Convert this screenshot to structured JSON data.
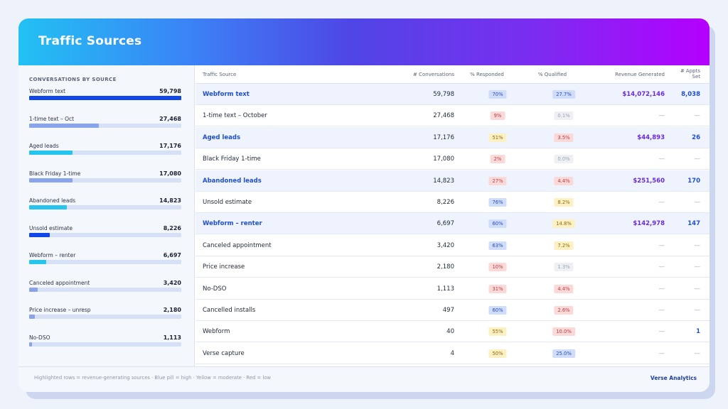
{
  "header": {
    "title": "Traffic Sources"
  },
  "colors": {
    "bar_dark": "#1146e8",
    "bar_cyan": "#27c4ee",
    "bar_light": "#8aa4ec",
    "pill_blue_bg": "#cfdcfb",
    "pill_blue_fg": "#2a4fb5",
    "pill_yellow_bg": "#fdf0c2",
    "pill_yellow_fg": "#8a6a10",
    "pill_red_bg": "#fbd9d9",
    "pill_red_fg": "#b84040",
    "pill_gray_bg": "#eef0f4",
    "pill_gray_fg": "#9aa1ae"
  },
  "left_panel": {
    "title": "CONVERSATIONS BY SOURCE",
    "max": 59798,
    "items": [
      {
        "label": "Webform text",
        "value": "59,798",
        "amount": 59798,
        "color": "dark"
      },
      {
        "label": "1-time text – Oct",
        "value": "27,468",
        "amount": 27468,
        "color": "light"
      },
      {
        "label": "Aged leads",
        "value": "17,176",
        "amount": 17176,
        "color": "cyan"
      },
      {
        "label": "Black Friday 1-time",
        "value": "17,080",
        "amount": 17080,
        "color": "light"
      },
      {
        "label": "Abandoned leads",
        "value": "14,823",
        "amount": 14823,
        "color": "cyan"
      },
      {
        "label": "Unsold estimate",
        "value": "8,226",
        "amount": 8226,
        "color": "dark"
      },
      {
        "label": "Webform – renter",
        "value": "6,697",
        "amount": 6697,
        "color": "cyan"
      },
      {
        "label": "Canceled appointment",
        "value": "3,420",
        "amount": 3420,
        "color": "light"
      },
      {
        "label": "Price increase – unresp",
        "value": "2,180",
        "amount": 2180,
        "color": "light"
      },
      {
        "label": "No-DSO",
        "value": "1,113",
        "amount": 1113,
        "color": "light"
      }
    ]
  },
  "table": {
    "columns": {
      "source": "Traffic Source",
      "conversations": "# Conversations",
      "responded": "% Responded",
      "qualified": "% Qualified",
      "revenue": "Revenue Generated",
      "appts_line1": "# Appts",
      "appts_line2": "Set"
    },
    "rows": [
      {
        "source": "Webform text",
        "conversations": "59,798",
        "responded": "70%",
        "responded_level": "blue",
        "qualified": "27.7%",
        "qualified_level": "blue",
        "revenue": "$14,072,146",
        "appts": "8,038",
        "highlight": true
      },
      {
        "source": "1-time text – October",
        "conversations": "27,468",
        "responded": "9%",
        "responded_level": "red",
        "qualified": "0.1%",
        "qualified_level": "gray",
        "revenue": "—",
        "appts": "—",
        "highlight": false
      },
      {
        "source": "Aged leads",
        "conversations": "17,176",
        "responded": "51%",
        "responded_level": "yellow",
        "qualified": "3.5%",
        "qualified_level": "red",
        "revenue": "$44,893",
        "appts": "26",
        "highlight": true
      },
      {
        "source": "Black Friday 1-time",
        "conversations": "17,080",
        "responded": "2%",
        "responded_level": "red",
        "qualified": "0.0%",
        "qualified_level": "gray",
        "revenue": "—",
        "appts": "—",
        "highlight": false
      },
      {
        "source": "Abandoned leads",
        "conversations": "14,823",
        "responded": "27%",
        "responded_level": "red",
        "qualified": "4.4%",
        "qualified_level": "red",
        "revenue": "$251,560",
        "appts": "170",
        "highlight": true
      },
      {
        "source": "Unsold estimate",
        "conversations": "8,226",
        "responded": "76%",
        "responded_level": "blue",
        "qualified": "8.2%",
        "qualified_level": "yellow",
        "revenue": "—",
        "appts": "—",
        "highlight": false
      },
      {
        "source": "Webform – renter",
        "conversations": "6,697",
        "responded": "60%",
        "responded_level": "blue",
        "qualified": "14.8%",
        "qualified_level": "yellow",
        "revenue": "$142,978",
        "appts": "147",
        "highlight": true
      },
      {
        "source": "Canceled appointment",
        "conversations": "3,420",
        "responded": "63%",
        "responded_level": "blue",
        "qualified": "7.2%",
        "qualified_level": "yellow",
        "revenue": "—",
        "appts": "—",
        "highlight": false
      },
      {
        "source": "Price increase",
        "conversations": "2,180",
        "responded": "10%",
        "responded_level": "red",
        "qualified": "1.3%",
        "qualified_level": "gray",
        "revenue": "—",
        "appts": "—",
        "highlight": false
      },
      {
        "source": "No-DSO",
        "conversations": "1,113",
        "responded": "31%",
        "responded_level": "red",
        "qualified": "4.4%",
        "qualified_level": "red",
        "revenue": "—",
        "appts": "—",
        "highlight": false
      },
      {
        "source": "Cancelled installs",
        "conversations": "497",
        "responded": "60%",
        "responded_level": "blue",
        "qualified": "2.6%",
        "qualified_level": "red",
        "revenue": "—",
        "appts": "—",
        "highlight": false
      },
      {
        "source": "Webform",
        "conversations": "40",
        "responded": "55%",
        "responded_level": "yellow",
        "qualified": "10.0%",
        "qualified_level": "red",
        "revenue": "—",
        "appts": "1",
        "highlight": false
      },
      {
        "source": "Verse capture",
        "conversations": "4",
        "responded": "50%",
        "responded_level": "yellow",
        "qualified": "25.0%",
        "qualified_level": "blue",
        "revenue": "—",
        "appts": "—",
        "highlight": false
      }
    ]
  },
  "footer": {
    "legend": "Highlighted rows = revenue-generating sources  ·  Blue pill = high  ·  Yellow = moderate  ·  Red = low",
    "brand": "Verse Analytics"
  }
}
